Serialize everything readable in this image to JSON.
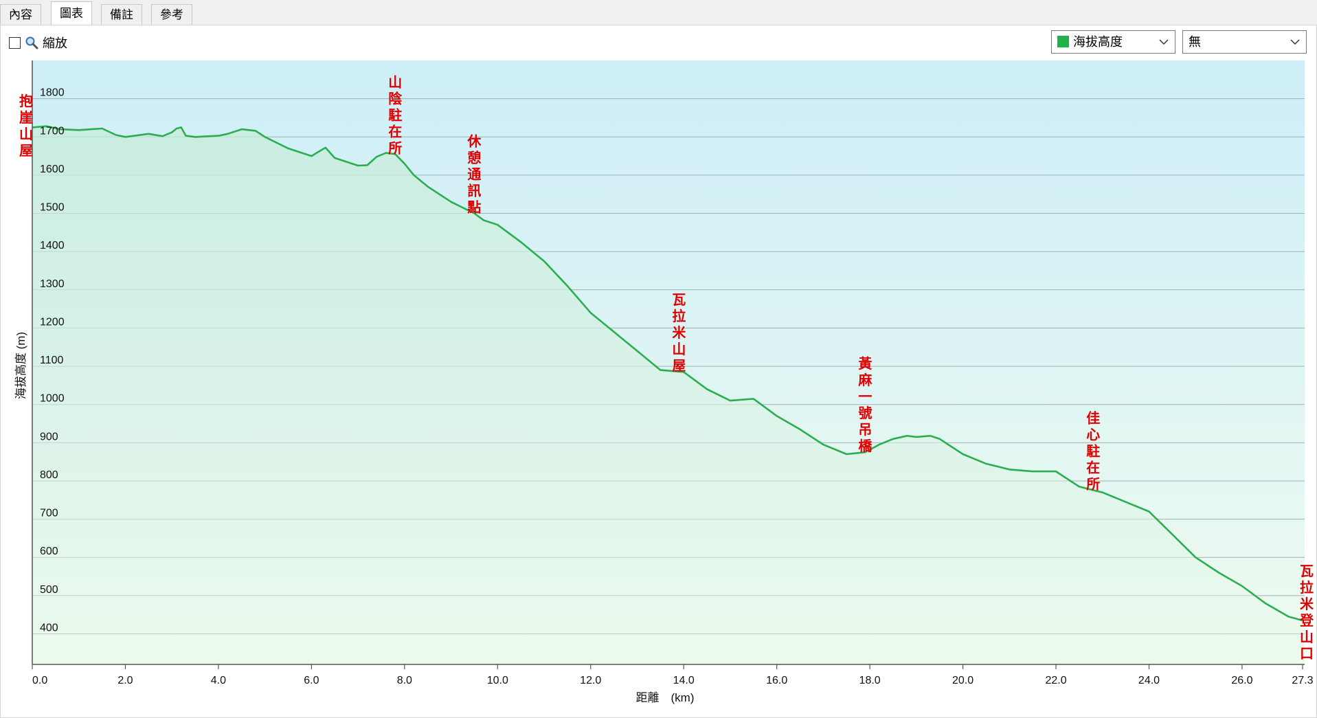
{
  "tabs": [
    {
      "label": "內容",
      "active": false
    },
    {
      "label": "圖表",
      "active": true
    },
    {
      "label": "備註",
      "active": false
    },
    {
      "label": "參考",
      "active": false
    }
  ],
  "toolbar": {
    "zoom_label": "縮放",
    "zoom_checked": false,
    "series_select": {
      "value": "海拔高度",
      "swatch_color": "#1db24b"
    },
    "second_select": {
      "value": "無"
    }
  },
  "colors": {
    "line": "#2aae4f",
    "bg_top": "#cdeef8",
    "bg_bottom": "#effbef",
    "annotation": "#e00000",
    "grid": "#9fb0b8"
  },
  "chart_data": {
    "type": "area",
    "xlabel": "距離　(km)",
    "ylabel": "海拔高度 (m)",
    "xlim": [
      0,
      27.3
    ],
    "ylim": [
      320,
      1900
    ],
    "xticks": [
      "0.0",
      "2.0",
      "4.0",
      "6.0",
      "8.0",
      "10.0",
      "12.0",
      "14.0",
      "16.0",
      "18.0",
      "20.0",
      "22.0",
      "24.0",
      "26.0",
      "27.3"
    ],
    "xtick_values": [
      0,
      2,
      4,
      6,
      8,
      10,
      12,
      14,
      16,
      18,
      20,
      22,
      24,
      26,
      27.3
    ],
    "yticks": [
      400,
      500,
      600,
      700,
      800,
      900,
      1000,
      1100,
      1200,
      1300,
      1400,
      1500,
      1600,
      1700,
      1800
    ],
    "grid": true,
    "series": [
      {
        "x": [
          0,
          0.3,
          0.6,
          1.0,
          1.5,
          1.8,
          2.0,
          2.5,
          2.8,
          3.0,
          3.1,
          3.2,
          3.3,
          3.5,
          4.0,
          4.2,
          4.5,
          4.8,
          5.0,
          5.5,
          6.0,
          6.3,
          6.5,
          7.0,
          7.2,
          7.4,
          7.6,
          7.8,
          8.0,
          8.2,
          8.5,
          9.0,
          9.5,
          9.7,
          10.0,
          10.5,
          11.0,
          11.5,
          12.0,
          12.5,
          13.0,
          13.5,
          14.0,
          14.5,
          15.0,
          15.5,
          16.0,
          16.5,
          17.0,
          17.5,
          17.9,
          18.2,
          18.5,
          18.8,
          19.0,
          19.3,
          19.5,
          20.0,
          20.5,
          21.0,
          21.5,
          22.0,
          22.5,
          23.0,
          23.5,
          24.0,
          24.5,
          25.0,
          25.5,
          26.0,
          26.5,
          27.0,
          27.3
        ],
        "y": [
          1725,
          1728,
          1720,
          1718,
          1722,
          1705,
          1700,
          1708,
          1702,
          1712,
          1722,
          1725,
          1703,
          1700,
          1703,
          1708,
          1720,
          1716,
          1700,
          1670,
          1650,
          1672,
          1645,
          1625,
          1626,
          1648,
          1658,
          1655,
          1630,
          1600,
          1570,
          1530,
          1500,
          1482,
          1470,
          1425,
          1375,
          1310,
          1240,
          1190,
          1140,
          1090,
          1085,
          1040,
          1010,
          1015,
          970,
          935,
          895,
          870,
          875,
          895,
          910,
          918,
          915,
          918,
          910,
          870,
          845,
          830,
          825,
          825,
          785,
          770,
          745,
          720,
          660,
          600,
          560,
          525,
          480,
          445,
          435
        ]
      }
    ],
    "annotations": [
      {
        "text": "抱崖山屋",
        "x": 0.0
      },
      {
        "text": "山陰駐在所",
        "x": 7.8
      },
      {
        "text": "休憩通訊點",
        "x": 9.5
      },
      {
        "text": "瓦拉米山屋",
        "x": 13.9
      },
      {
        "text": "黃麻一號吊橋",
        "x": 17.9
      },
      {
        "text": "佳心駐在所",
        "x": 22.8
      },
      {
        "text": "瓦拉米登山口",
        "x": 27.3
      }
    ]
  }
}
